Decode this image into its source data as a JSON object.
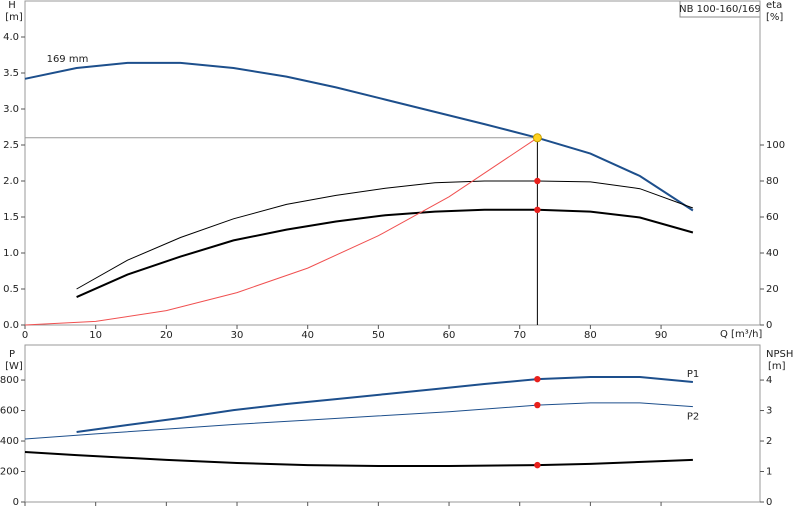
{
  "chart_data": [
    {
      "type": "line",
      "title": "NB 100-160/169",
      "ylabel": "H",
      "yunit": "[m]",
      "y2label": "eta",
      "y2unit": "[%]",
      "xlabel": "Q [m³/h]",
      "xlim": [
        0,
        104
      ],
      "xticks": [
        0,
        10,
        20,
        30,
        40,
        50,
        60,
        70,
        80,
        90
      ],
      "ylim": [
        0,
        4.5
      ],
      "yticks": [
        {
          "value": 0,
          "label": "0.0"
        },
        0.5,
        {
          "value": 1,
          "label": "1.0"
        },
        1.5,
        {
          "value": 2,
          "label": "2.0"
        },
        2.5,
        {
          "value": 3,
          "label": "3.0"
        },
        3.5,
        {
          "value": 4,
          "label": "4.0"
        }
      ],
      "y2lim": [
        0,
        180
      ],
      "y2ticks": [
        0,
        20,
        40,
        60,
        80,
        100
      ],
      "series": [
        {
          "name": "169 mm",
          "color": "#1d4f8c",
          "line_width": 2,
          "x": [
            0,
            7.3,
            14.5,
            22,
            29.5,
            37,
            44,
            51,
            58,
            65,
            72.5,
            80,
            87,
            94.5
          ],
          "values": [
            3.42,
            3.57,
            3.64,
            3.64,
            3.57,
            3.45,
            3.3,
            3.13,
            2.96,
            2.79,
            2.6,
            2.38,
            2.07,
            1.59
          ]
        },
        {
          "color": "#000000",
          "line_width": 1,
          "axis": "y2",
          "x": [
            7.3,
            14.5,
            22,
            29.5,
            37,
            44,
            51,
            58,
            65,
            72.5,
            80,
            87,
            94.5
          ],
          "values": [
            20,
            36,
            48.6,
            59,
            67,
            72,
            76,
            79,
            80,
            80,
            79.5,
            75.7,
            65
          ]
        },
        {
          "color": "#000000",
          "line_width": 2,
          "axis": "y2",
          "x": [
            7.3,
            14.5,
            22,
            29.5,
            37,
            44,
            51,
            58,
            65,
            72.5,
            80,
            87,
            94.5
          ],
          "values": [
            15.5,
            28,
            38,
            47,
            53,
            57.5,
            61,
            63,
            64,
            64,
            63,
            59.7,
            51.4
          ]
        },
        {
          "color": "#f05050",
          "line_width": 1,
          "x": [
            0,
            10,
            20,
            30,
            40,
            50,
            60,
            72.5
          ],
          "values": [
            0,
            0.05,
            0.2,
            0.45,
            0.79,
            1.24,
            1.78,
            2.6
          ]
        }
      ],
      "duty_point": {
        "x": 72.5,
        "y": 2.6,
        "color": "#ffd21f"
      },
      "points": [
        {
          "x": 72.5,
          "y": 80,
          "axis": "y2",
          "color": "#e8201c"
        },
        {
          "x": 72.5,
          "y": 64,
          "axis": "y2",
          "color": "#e8201c"
        }
      ]
    },
    {
      "type": "line",
      "ylabel": "P",
      "yunit": "[W]",
      "y2label": "NPSH",
      "y2unit": "[m]",
      "xlim": [
        0,
        104
      ],
      "xticks": [
        0,
        10,
        20,
        30,
        40,
        50,
        60,
        70,
        80,
        90
      ],
      "ylim": [
        0,
        1030
      ],
      "yticks": [
        0,
        200,
        400,
        600,
        800
      ],
      "y2lim": [
        0,
        5.15
      ],
      "y2ticks": [
        0,
        1,
        2,
        3,
        4
      ],
      "series": [
        {
          "name": "P1",
          "color": "#1d4f8c",
          "line_width": 2,
          "x": [
            7.3,
            14.5,
            22,
            29.5,
            37,
            44,
            51,
            58,
            65,
            72.5,
            80,
            87,
            94.5
          ],
          "values": [
            459,
            505,
            551,
            603,
            643,
            675,
            708,
            741,
            774,
            806,
            820,
            820,
            787
          ]
        },
        {
          "name": "P2",
          "color": "#1d4f8c",
          "line_width": 1,
          "x": [
            0,
            10,
            20,
            30,
            40,
            50,
            60,
            72.5,
            80,
            87,
            94.5
          ],
          "values": [
            413,
            447,
            478,
            510,
            537,
            565,
            592,
            636,
            650,
            650,
            626
          ]
        },
        {
          "color": "#000000",
          "line_width": 2,
          "axis": "y2",
          "x": [
            0,
            7.3,
            20,
            30,
            40,
            50,
            60,
            72.5,
            80,
            90,
            94.5
          ],
          "values": [
            1.64,
            1.54,
            1.38,
            1.28,
            1.21,
            1.18,
            1.18,
            1.21,
            1.25,
            1.34,
            1.38
          ]
        }
      ],
      "points": [
        {
          "x": 72.5,
          "y": 806,
          "color": "#e8201c"
        },
        {
          "x": 72.5,
          "y": 636,
          "color": "#e8201c"
        },
        {
          "x": 72.5,
          "y": 1.21,
          "axis": "y2",
          "color": "#e8201c"
        }
      ]
    }
  ]
}
